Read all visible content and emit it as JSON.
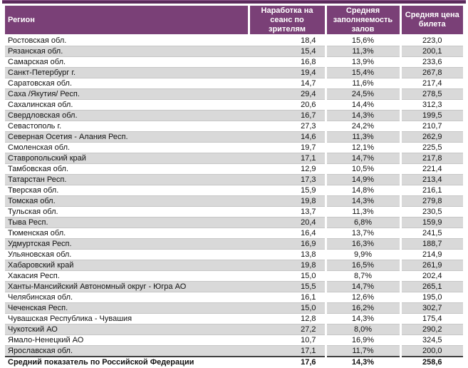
{
  "colors": {
    "header_bg": "#7A4077",
    "top_bar": "#5B2A5B",
    "alt_row_bg": "#D9D9D9",
    "grid_line": "#C6C6C6",
    "total_border": "#3F3F3F",
    "header_text": "#FFFFFF",
    "body_text": "#111111"
  },
  "table": {
    "columns": [
      {
        "key": "region",
        "label": "Регион"
      },
      {
        "key": "per_session",
        "label": "Наработка на сеанс по зрителям"
      },
      {
        "key": "occupancy",
        "label": "Средняя заполняемость залов"
      },
      {
        "key": "price",
        "label": "Средняя цена билета"
      }
    ],
    "rows": [
      {
        "region": "Ростовская обл.",
        "per_session": "18,4",
        "occupancy": "15,6%",
        "price": "223,0"
      },
      {
        "region": "Рязанская обл.",
        "per_session": "15,4",
        "occupancy": "11,3%",
        "price": "200,1"
      },
      {
        "region": "Самарская обл.",
        "per_session": "16,8",
        "occupancy": "13,9%",
        "price": "233,6"
      },
      {
        "region": "Санкт-Петербург г.",
        "per_session": "19,4",
        "occupancy": "15,4%",
        "price": "267,8"
      },
      {
        "region": "Саратовская обл.",
        "per_session": "14,7",
        "occupancy": "11,6%",
        "price": "217,4"
      },
      {
        "region": "Саха /Якутия/ Респ.",
        "per_session": "29,4",
        "occupancy": "24,5%",
        "price": "278,5"
      },
      {
        "region": "Сахалинская обл.",
        "per_session": "20,6",
        "occupancy": "14,4%",
        "price": "312,3"
      },
      {
        "region": "Свердловская обл.",
        "per_session": "16,7",
        "occupancy": "14,3%",
        "price": "199,5"
      },
      {
        "region": "Севастополь г.",
        "per_session": "27,3",
        "occupancy": "24,2%",
        "price": "210,7"
      },
      {
        "region": "Северная Осетия - Алания Респ.",
        "per_session": "14,6",
        "occupancy": "11,3%",
        "price": "262,9"
      },
      {
        "region": "Смоленская обл.",
        "per_session": "19,7",
        "occupancy": "12,1%",
        "price": "225,5"
      },
      {
        "region": "Ставропольский край",
        "per_session": "17,1",
        "occupancy": "14,7%",
        "price": "217,8"
      },
      {
        "region": "Тамбовская обл.",
        "per_session": "12,9",
        "occupancy": "10,5%",
        "price": "221,4"
      },
      {
        "region": "Татарстан Респ.",
        "per_session": "17,3",
        "occupancy": "14,9%",
        "price": "213,4"
      },
      {
        "region": "Тверская обл.",
        "per_session": "15,9",
        "occupancy": "14,8%",
        "price": "216,1"
      },
      {
        "region": "Томская обл.",
        "per_session": "19,8",
        "occupancy": "14,3%",
        "price": "279,8"
      },
      {
        "region": "Тульская обл.",
        "per_session": "13,7",
        "occupancy": "11,3%",
        "price": "230,5"
      },
      {
        "region": "Тыва Респ.",
        "per_session": "20,4",
        "occupancy": "6,8%",
        "price": "159,9"
      },
      {
        "region": "Тюменская обл.",
        "per_session": "16,4",
        "occupancy": "13,7%",
        "price": "241,5"
      },
      {
        "region": "Удмуртская Респ.",
        "per_session": "16,9",
        "occupancy": "16,3%",
        "price": "188,7"
      },
      {
        "region": "Ульяновская обл.",
        "per_session": "13,8",
        "occupancy": "9,9%",
        "price": "214,9"
      },
      {
        "region": "Хабаровский край",
        "per_session": "19,8",
        "occupancy": "16,5%",
        "price": "261,9"
      },
      {
        "region": "Хакасия Респ.",
        "per_session": "15,0",
        "occupancy": "8,7%",
        "price": "202,4"
      },
      {
        "region": "Ханты-Мансийский Автономный округ - Югра АО",
        "per_session": "15,5",
        "occupancy": "14,7%",
        "price": "265,1"
      },
      {
        "region": "Челябинская обл.",
        "per_session": "16,1",
        "occupancy": "12,6%",
        "price": "195,0"
      },
      {
        "region": "Чеченская Респ.",
        "per_session": "15,0",
        "occupancy": "16,2%",
        "price": "302,7"
      },
      {
        "region": "Чувашская Республика - Чувашия",
        "per_session": "12,8",
        "occupancy": "14,3%",
        "price": "175,4"
      },
      {
        "region": "Чукотский АО",
        "per_session": "27,2",
        "occupancy": "8,0%",
        "price": "290,2"
      },
      {
        "region": "Ямало-Ненецкий АО",
        "per_session": "10,7",
        "occupancy": "16,9%",
        "price": "324,5"
      },
      {
        "region": "Ярославская обл.",
        "per_session": "17,1",
        "occupancy": "11,7%",
        "price": "200,0"
      }
    ],
    "total_row": {
      "region": "Средний показатель по Российской Федерации",
      "per_session": "17,6",
      "occupancy": "14,3%",
      "price": "258,6"
    }
  }
}
